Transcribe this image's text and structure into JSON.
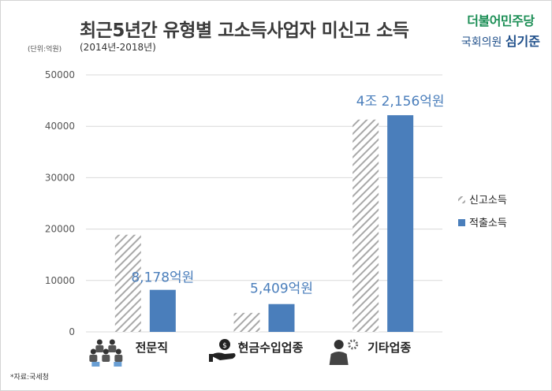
{
  "header": {
    "title": "최근5년간 유형별 고소득사업자 미신고 소득",
    "subtitle": "(2014년-2018년)",
    "unit": "(단위:억원)",
    "source": "*자료:국세청"
  },
  "logo": {
    "party": "더불어민주당",
    "office": "국회의원",
    "member": "심기준"
  },
  "colors": {
    "reported": "#a8a8a8",
    "collected": "#4a7ebb",
    "label": "#4a7ebb",
    "grid": "#d9d9d9"
  },
  "chart_data": {
    "type": "bar",
    "title": "최근5년간 유형별 고소득사업자 미신고 소득",
    "subtitle": "(2014년-2018년)",
    "unit": "(단위:억원)",
    "categories": [
      "전문직",
      "현금수입업종",
      "기타업종"
    ],
    "icons": [
      "professionals-icon",
      "money-hand-icon",
      "businessman-gear-icon"
    ],
    "series": [
      {
        "name": "신고소득",
        "values": [
          18900,
          3700,
          41300
        ],
        "pattern": "diagonal-hatch"
      },
      {
        "name": "적출소득",
        "values": [
          8178,
          5409,
          42156
        ]
      }
    ],
    "data_labels": [
      "8,178억원",
      "5,409억원",
      "4조 2,156억원"
    ],
    "ylim": [
      0,
      50000
    ],
    "yticks": [
      0,
      10000,
      20000,
      30000,
      40000,
      50000
    ],
    "grid": true,
    "legend": "right"
  }
}
